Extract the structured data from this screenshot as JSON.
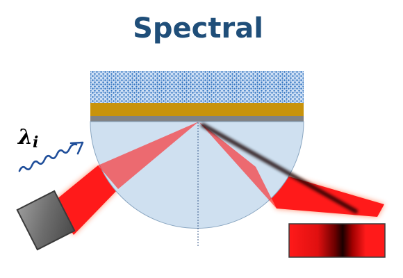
{
  "title": "Spectral",
  "wavelength_label": {
    "symbol": "λ",
    "subscript": "i"
  },
  "colors": {
    "title": "#1f4e79",
    "prism_fill": "#cfe0f0",
    "prism_stroke": "#8aa6c1",
    "sample_pattern_bg": "#cfe0f5",
    "sample_pattern_dots": "#2a6fbe",
    "gold_film": "#c8930c",
    "adhesion_layer": "#808285",
    "beam": "#ff1a1a",
    "beam_glow": "#ff6a3d",
    "wave_arrow": "#1f4e9a",
    "light_source_body": "#6d6d6d",
    "detector_dark_band": "#1a0000"
  },
  "icons": {
    "wave_arrow": "wavy-arrow-icon",
    "source": "light-source-icon",
    "detector": "detector-icon"
  }
}
